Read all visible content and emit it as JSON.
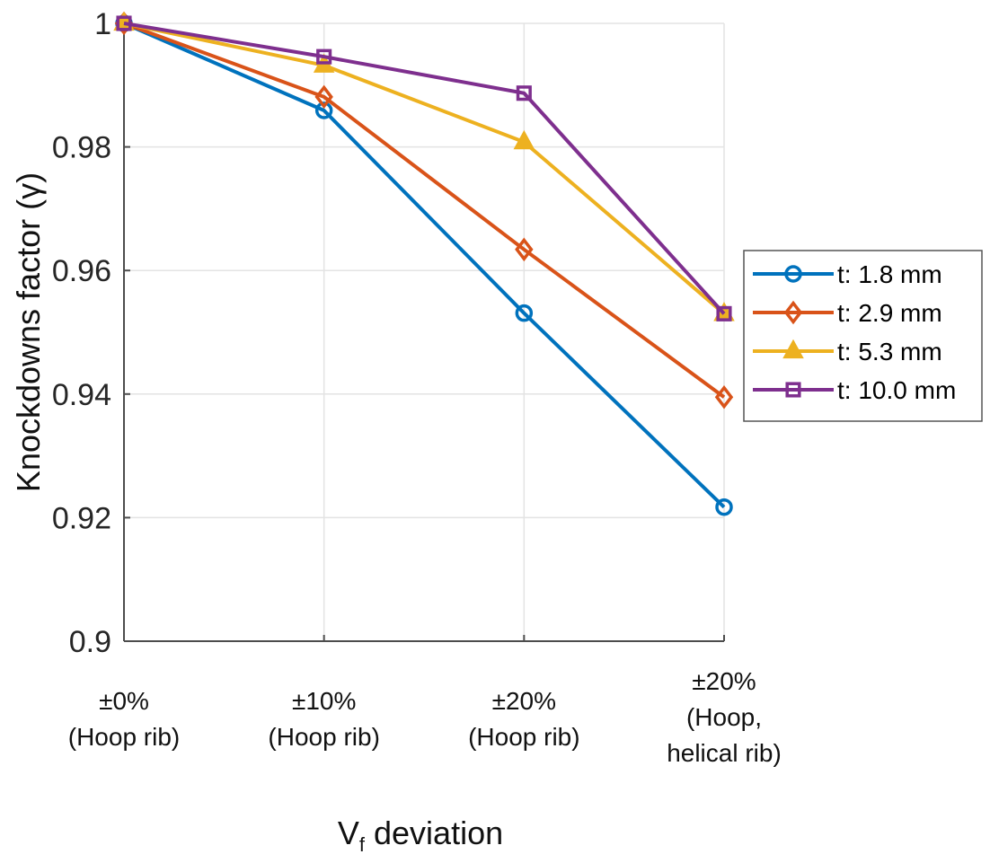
{
  "chart_data": {
    "type": "line",
    "title": "",
    "xlabel": "V",
    "xlabel_subscript": "f",
    "xlabel_suffix": " deviation",
    "ylabel": "Knockdowns factor (γ)",
    "ylim": [
      0.9,
      1.0
    ],
    "yticks": [
      0.9,
      0.92,
      0.94,
      0.96,
      0.98,
      1
    ],
    "ytick_labels": [
      "0.9",
      "0.92",
      "0.94",
      "0.96",
      "0.98",
      "1"
    ],
    "grid": true,
    "legend_position": "right",
    "categories": [
      {
        "line1": "±0%",
        "line2": "(Hoop rib)",
        "line3": ""
      },
      {
        "line1": "±10%",
        "line2": "(Hoop rib)",
        "line3": ""
      },
      {
        "line1": "±20%",
        "line2": "(Hoop rib)",
        "line3": ""
      },
      {
        "line1": "±20%",
        "line2": "(Hoop,",
        "line3": "helical rib)"
      }
    ],
    "series": [
      {
        "name": "t: 1.8 mm",
        "color": "#0072BD",
        "marker": "circle",
        "values": [
          1.0,
          0.9859,
          0.9531,
          0.9217
        ]
      },
      {
        "name": "t: 2.9 mm",
        "color": "#D95319",
        "marker": "diamond",
        "values": [
          1.0,
          0.9881,
          0.9634,
          0.9395
        ]
      },
      {
        "name": "t: 5.3 mm",
        "color": "#EDB120",
        "marker": "triangle",
        "values": [
          1.0,
          0.9932,
          0.9808,
          0.953
        ]
      },
      {
        "name": "t: 10.0 mm",
        "color": "#7E2F8E",
        "marker": "square",
        "values": [
          1.0,
          0.9946,
          0.9887,
          0.953
        ]
      }
    ]
  }
}
